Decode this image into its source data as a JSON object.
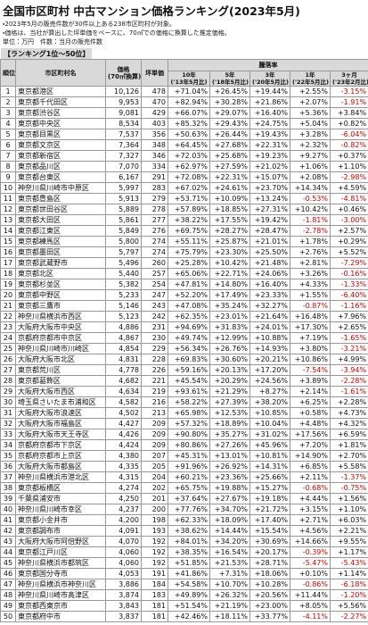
{
  "header": {
    "title": "全国市区町村 中古マンション価格ランキング(2023年5月)",
    "notes": [
      "・2023年5月の販売件数が30件以上ある238市区町村が対象。",
      "・価格は、当社が算出した坪単価をベースに、70㎡での価格に換算した推定価格。"
    ],
    "units": "単位：万円　件数：当月の販売件数"
  },
  "section_label": "【ランキング1位〜50位】",
  "table": {
    "head": {
      "rank": "順位",
      "name": "市区町村名",
      "price": "価格",
      "price_sub": "(70㎡換算)",
      "tsubo": "坪単価",
      "change": "騰落率",
      "periods": [
        {
          "label": "10年",
          "sub": "('13年5月比)"
        },
        {
          "label": "5年",
          "sub": "('18年5月比)"
        },
        {
          "label": "3年",
          "sub": "('20年5月比)"
        },
        {
          "label": "1年",
          "sub": "('22年5月比)"
        },
        {
          "label": "3ヶ月",
          "sub": "('23年2月比)"
        }
      ]
    },
    "rows": [
      [
        1,
        "東京都港区",
        "10,126",
        "478",
        "+71.04%",
        "+26.45%",
        "+19.44%",
        "+2.55%",
        "-3.15%"
      ],
      [
        2,
        "東京都千代田区",
        "9,953",
        "470",
        "+82.94%",
        "+30.28%",
        "+21.86%",
        "+2.07%",
        "-1.91%"
      ],
      [
        3,
        "東京都渋谷区",
        "9,081",
        "429",
        "+66.07%",
        "+29.07%",
        "+16.40%",
        "+5.36%",
        "+3.84%"
      ],
      [
        4,
        "東京都中央区",
        "8,534",
        "403",
        "+85.32%",
        "+29.43%",
        "+24.75%",
        "+5.04%",
        "+0.82%"
      ],
      [
        5,
        "東京都目黒区",
        "7,537",
        "356",
        "+50.63%",
        "+26.44%",
        "+19.43%",
        "+3.28%",
        "-6.04%"
      ],
      [
        6,
        "東京都文京区",
        "7,364",
        "348",
        "+64.45%",
        "+27.68%",
        "+22.31%",
        "+2.32%",
        "-0.82%"
      ],
      [
        7,
        "東京都新宿区",
        "7,327",
        "346",
        "+72.03%",
        "+25.68%",
        "+19.23%",
        "+9.27%",
        "+0.37%"
      ],
      [
        8,
        "東京都品川区",
        "7,070",
        "334",
        "+62.97%",
        "+27.59%",
        "+21.02%",
        "+1.06%",
        "+1.10%"
      ],
      [
        9,
        "東京都台東区",
        "6,167",
        "291",
        "+72.08%",
        "+22.31%",
        "+15.07%",
        "+2.08%",
        "-2.98%"
      ],
      [
        10,
        "神奈川県川崎市中原区",
        "5,997",
        "283",
        "+67.02%",
        "+24.61%",
        "+23.70%",
        "+14.34%",
        "+4.59%"
      ],
      [
        11,
        "東京都豊島区",
        "5,913",
        "279",
        "+53.71%",
        "+10.09%",
        "+13.24%",
        "-0.53%",
        "-4.81%"
      ],
      [
        12,
        "東京都世田谷区",
        "5,889",
        "278",
        "+57.89%",
        "+18.85%",
        "+27.31%",
        "+10.42%",
        "+0.46%"
      ],
      [
        13,
        "東京都大田区",
        "5,861",
        "277",
        "+38.22%",
        "+17.55%",
        "+19.42%",
        "-1.81%",
        "-3.00%"
      ],
      [
        14,
        "東京都江東区",
        "5,849",
        "276",
        "+69.75%",
        "+28.27%",
        "+28.47%",
        "-2.78%",
        "+2.57%"
      ],
      [
        15,
        "東京都練馬区",
        "5,800",
        "274",
        "+55.11%",
        "+25.87%",
        "+21.01%",
        "+1.78%",
        "+0.29%"
      ],
      [
        16,
        "東京都墨田区",
        "5,797",
        "274",
        "+75.79%",
        "+23.30%",
        "+25.50%",
        "+2.76%",
        "+5.52%"
      ],
      [
        17,
        "東京都武蔵野市",
        "5,496",
        "260",
        "+25.28%",
        "+10.42%",
        "+21.48%",
        "+2.81%",
        "-7.29%"
      ],
      [
        18,
        "東京都北区",
        "5,440",
        "257",
        "+65.06%",
        "+22.71%",
        "+24.06%",
        "+3.26%",
        "-0.16%"
      ],
      [
        19,
        "東京都杉並区",
        "5,382",
        "254",
        "+47.81%",
        "+14.80%",
        "+16.40%",
        "+4.33%",
        "-1.33%"
      ],
      [
        20,
        "東京都中野区",
        "5,233",
        "247",
        "+52.20%",
        "+17.49%",
        "+23.33%",
        "+1.55%",
        "-6.40%"
      ],
      [
        21,
        "東京都三鷹市",
        "5,146",
        "243",
        "+47.08%",
        "+35.24%",
        "+32.27%",
        "-0.87%",
        "-1.16%"
      ],
      [
        22,
        "神奈川県横浜市西区",
        "5,123",
        "242",
        "+62.35%",
        "+23.01%",
        "+21.64%",
        "+16.48%",
        "+7.96%"
      ],
      [
        23,
        "大阪府大阪市中央区",
        "4,886",
        "231",
        "+94.69%",
        "+31.83%",
        "+24.01%",
        "+17.30%",
        "+2.65%"
      ],
      [
        24,
        "京都府京都市中京区",
        "4,867",
        "230",
        "+49.74%",
        "+12.99%",
        "+10.88%",
        "+7.19%",
        "-1.65%"
      ],
      [
        25,
        "神奈川県川崎市川崎区",
        "4,854",
        "229",
        "+56.34%",
        "+26.76%",
        "+14.93%",
        "+3.80%",
        "-3.21%"
      ],
      [
        26,
        "大阪府大阪市北区",
        "4,831",
        "228",
        "+69.83%",
        "+30.60%",
        "+20.21%",
        "+10.86%",
        "+4.99%"
      ],
      [
        27,
        "東京都荒川区",
        "4,778",
        "226",
        "+59.16%",
        "+20.13%",
        "+17.20%",
        "-7.54%",
        "-3.94%"
      ],
      [
        28,
        "東京都葛飾区",
        "4,682",
        "221",
        "+45.54%",
        "+20.29%",
        "+24.56%",
        "+3.89%",
        "-2.28%"
      ],
      [
        29,
        "大阪府大阪市西区",
        "4,634",
        "219",
        "+93.61%",
        "+21.29%",
        "+8.27%",
        "+2.14%",
        "-1.61%"
      ],
      [
        30,
        "埼玉県さいたま市浦和区",
        "4,582",
        "216",
        "+58.22%",
        "+27.39%",
        "+38.20%",
        "+6.25%",
        "+2.28%"
      ],
      [
        31,
        "大阪府大阪市浪速区",
        "4,502",
        "213",
        "+65.98%",
        "+12.53%",
        "+10.85%",
        "+0.58%",
        "+4.73%"
      ],
      [
        32,
        "大阪府大阪市福島区",
        "4,427",
        "209",
        "+57.32%",
        "+18.89%",
        "+10.04%",
        "+4.48%",
        "+4.32%"
      ],
      [
        33,
        "大阪府大阪市天王寺区",
        "4,426",
        "209",
        "+90.80%",
        "+35.27%",
        "+31.02%",
        "+17.56%",
        "+6.59%"
      ],
      [
        34,
        "京都府京都市下京区",
        "4,424",
        "209",
        "+80.86%",
        "+27.26%",
        "+45.96%",
        "+7.20%",
        "+1.81%"
      ],
      [
        35,
        "京都府京都市上京区",
        "4,380",
        "207",
        "+45.31%",
        "+13.01%",
        "+10.81%",
        "+14.90%",
        "+2.70%"
      ],
      [
        36,
        "大阪府大阪市都島区",
        "4,335",
        "205",
        "+91.96%",
        "+26.92%",
        "+14.31%",
        "+6.85%",
        "+5.58%"
      ],
      [
        37,
        "神奈川県横浜市港北区",
        "4,315",
        "204",
        "+60.21%",
        "+23.36%",
        "+25.66%",
        "+2.11%",
        "-1.37%"
      ],
      [
        38,
        "東京都板橋区",
        "4,274",
        "202",
        "+65.75%",
        "+19.88%",
        "+15.27%",
        "-0.68%",
        "-0.75%"
      ],
      [
        39,
        "千葉県浦安市",
        "4,250",
        "201",
        "+37.64%",
        "+27.67%",
        "+19.18%",
        "+4.44%",
        "+1.56%"
      ],
      [
        40,
        "神奈川県川崎市幸区",
        "4,237",
        "200",
        "+77.76%",
        "+34.70%",
        "+21.72%",
        "+3.15%",
        "+1.10%"
      ],
      [
        41,
        "東京都小金井市",
        "4,200",
        "198",
        "+62.33%",
        "+18.09%",
        "+17.40%",
        "+2.71%",
        "+6.03%"
      ],
      [
        42,
        "東京都調布市",
        "4,091",
        "193",
        "+38.62%",
        "+14.44%",
        "+15.54%",
        "+4.56%",
        "+2.21%"
      ],
      [
        43,
        "大阪府大阪市阿倍野区",
        "4,070",
        "192",
        "+84.01%",
        "+34.20%",
        "+30.69%",
        "+14.66%",
        "+9.55%"
      ],
      [
        44,
        "東京都江戸川区",
        "4,060",
        "192",
        "+38.35%",
        "+16.54%",
        "+20.17%",
        "-0.39%",
        "+1.17%"
      ],
      [
        45,
        "神奈川県横浜市都筑区",
        "4,060",
        "192",
        "+51.85%",
        "+21.53%",
        "+28.71%",
        "-5.47%",
        "-5.43%"
      ],
      [
        46,
        "東京都国分寺市",
        "4,053",
        "191",
        "+41.86%",
        "+7.31%",
        "+18.06%",
        "+0.10%",
        "+1.14%"
      ],
      [
        47,
        "神奈川県横浜市神奈川区",
        "3,886",
        "184",
        "+54.58%",
        "+10.70%",
        "+10.28%",
        "-0.86%",
        "-6.18%"
      ],
      [
        48,
        "神奈川県川崎市高津区",
        "3,874",
        "183",
        "+49.89%",
        "+26.32%",
        "+20.56%",
        "+11.44%",
        "-1.20%"
      ],
      [
        49,
        "東京都西東京市",
        "3,843",
        "181",
        "+51.54%",
        "+21.19%",
        "+23.00%",
        "+8.05%",
        "+5.56%"
      ],
      [
        50,
        "東京都府中市",
        "3,837",
        "181",
        "+42.46%",
        "+18.11%",
        "+33.77%",
        "-4.11%",
        "-2.27%"
      ]
    ]
  }
}
